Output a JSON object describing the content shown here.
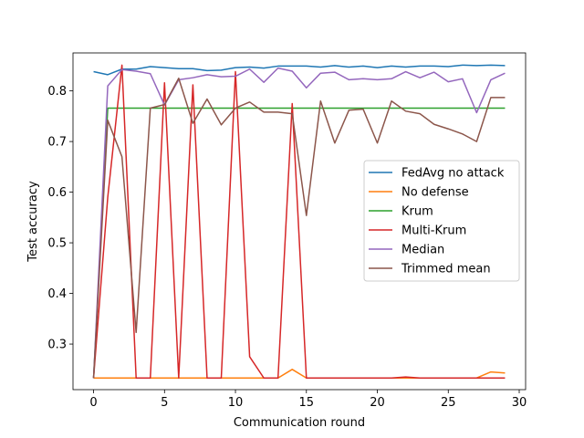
{
  "chart_data": {
    "type": "line",
    "title": "",
    "xlabel": "Communication round",
    "ylabel": "Test accuracy",
    "xlim": [
      -1.45,
      30.45
    ],
    "ylim": [
      0.21,
      0.875
    ],
    "xticks": [
      0,
      5,
      10,
      15,
      20,
      25,
      30
    ],
    "yticks": [
      0.3,
      0.4,
      0.5,
      0.6,
      0.7,
      0.8
    ],
    "xtick_labels": [
      "0",
      "5",
      "10",
      "15",
      "20",
      "25",
      "30"
    ],
    "ytick_labels": [
      "0.3",
      "0.4",
      "0.5",
      "0.6",
      "0.7",
      "0.8"
    ],
    "grid": false,
    "legend_position": "center-right",
    "x": [
      0,
      1,
      2,
      3,
      4,
      5,
      6,
      7,
      8,
      9,
      10,
      11,
      12,
      13,
      14,
      15,
      16,
      17,
      18,
      19,
      20,
      21,
      22,
      23,
      24,
      25,
      26,
      27,
      28,
      29
    ],
    "series": [
      {
        "name": "FedAvg no attack",
        "color": "#1f77b4",
        "values": [
          0.838,
          0.832,
          0.843,
          0.843,
          0.848,
          0.846,
          0.844,
          0.844,
          0.84,
          0.841,
          0.846,
          0.847,
          0.845,
          0.849,
          0.849,
          0.849,
          0.847,
          0.85,
          0.847,
          0.849,
          0.846,
          0.849,
          0.847,
          0.849,
          0.849,
          0.848,
          0.851,
          0.85,
          0.851,
          0.85
        ]
      },
      {
        "name": "No defense",
        "color": "#ff7f0e",
        "values": [
          0.233,
          0.233,
          0.233,
          0.233,
          0.233,
          0.233,
          0.233,
          0.233,
          0.233,
          0.233,
          0.233,
          0.233,
          0.233,
          0.233,
          0.25,
          0.233,
          0.233,
          0.233,
          0.233,
          0.233,
          0.233,
          0.233,
          0.233,
          0.233,
          0.233,
          0.233,
          0.233,
          0.233,
          0.245,
          0.243
        ]
      },
      {
        "name": "Krum",
        "color": "#2ca02c",
        "values": [
          0.233,
          0.766,
          0.766,
          0.766,
          0.766,
          0.766,
          0.766,
          0.766,
          0.766,
          0.766,
          0.766,
          0.766,
          0.766,
          0.766,
          0.766,
          0.766,
          0.766,
          0.766,
          0.766,
          0.766,
          0.766,
          0.766,
          0.766,
          0.766,
          0.766,
          0.766,
          0.766,
          0.766,
          0.766,
          0.766
        ]
      },
      {
        "name": "Multi-Krum",
        "color": "#d62728",
        "values": [
          0.233,
          0.59,
          0.851,
          0.233,
          0.233,
          0.816,
          0.233,
          0.812,
          0.233,
          0.233,
          0.838,
          0.275,
          0.233,
          0.233,
          0.775,
          0.233,
          0.233,
          0.233,
          0.233,
          0.233,
          0.233,
          0.233,
          0.235,
          0.233,
          0.233,
          0.233,
          0.233,
          0.233,
          0.233,
          0.233
        ]
      },
      {
        "name": "Median",
        "color": "#9467bd",
        "values": [
          0.233,
          0.81,
          0.842,
          0.839,
          0.834,
          0.772,
          0.822,
          0.826,
          0.832,
          0.828,
          0.829,
          0.843,
          0.817,
          0.845,
          0.839,
          0.806,
          0.835,
          0.837,
          0.822,
          0.824,
          0.822,
          0.824,
          0.838,
          0.826,
          0.837,
          0.818,
          0.824,
          0.757,
          0.822,
          0.835
        ]
      },
      {
        "name": "Trimmed mean",
        "color": "#8c564b",
        "values": [
          0.233,
          0.742,
          0.67,
          0.323,
          0.766,
          0.773,
          0.825,
          0.736,
          0.784,
          0.733,
          0.766,
          0.778,
          0.758,
          0.758,
          0.755,
          0.554,
          0.78,
          0.697,
          0.762,
          0.764,
          0.697,
          0.78,
          0.76,
          0.755,
          0.734,
          0.725,
          0.715,
          0.7,
          0.787,
          0.787
        ]
      }
    ]
  }
}
